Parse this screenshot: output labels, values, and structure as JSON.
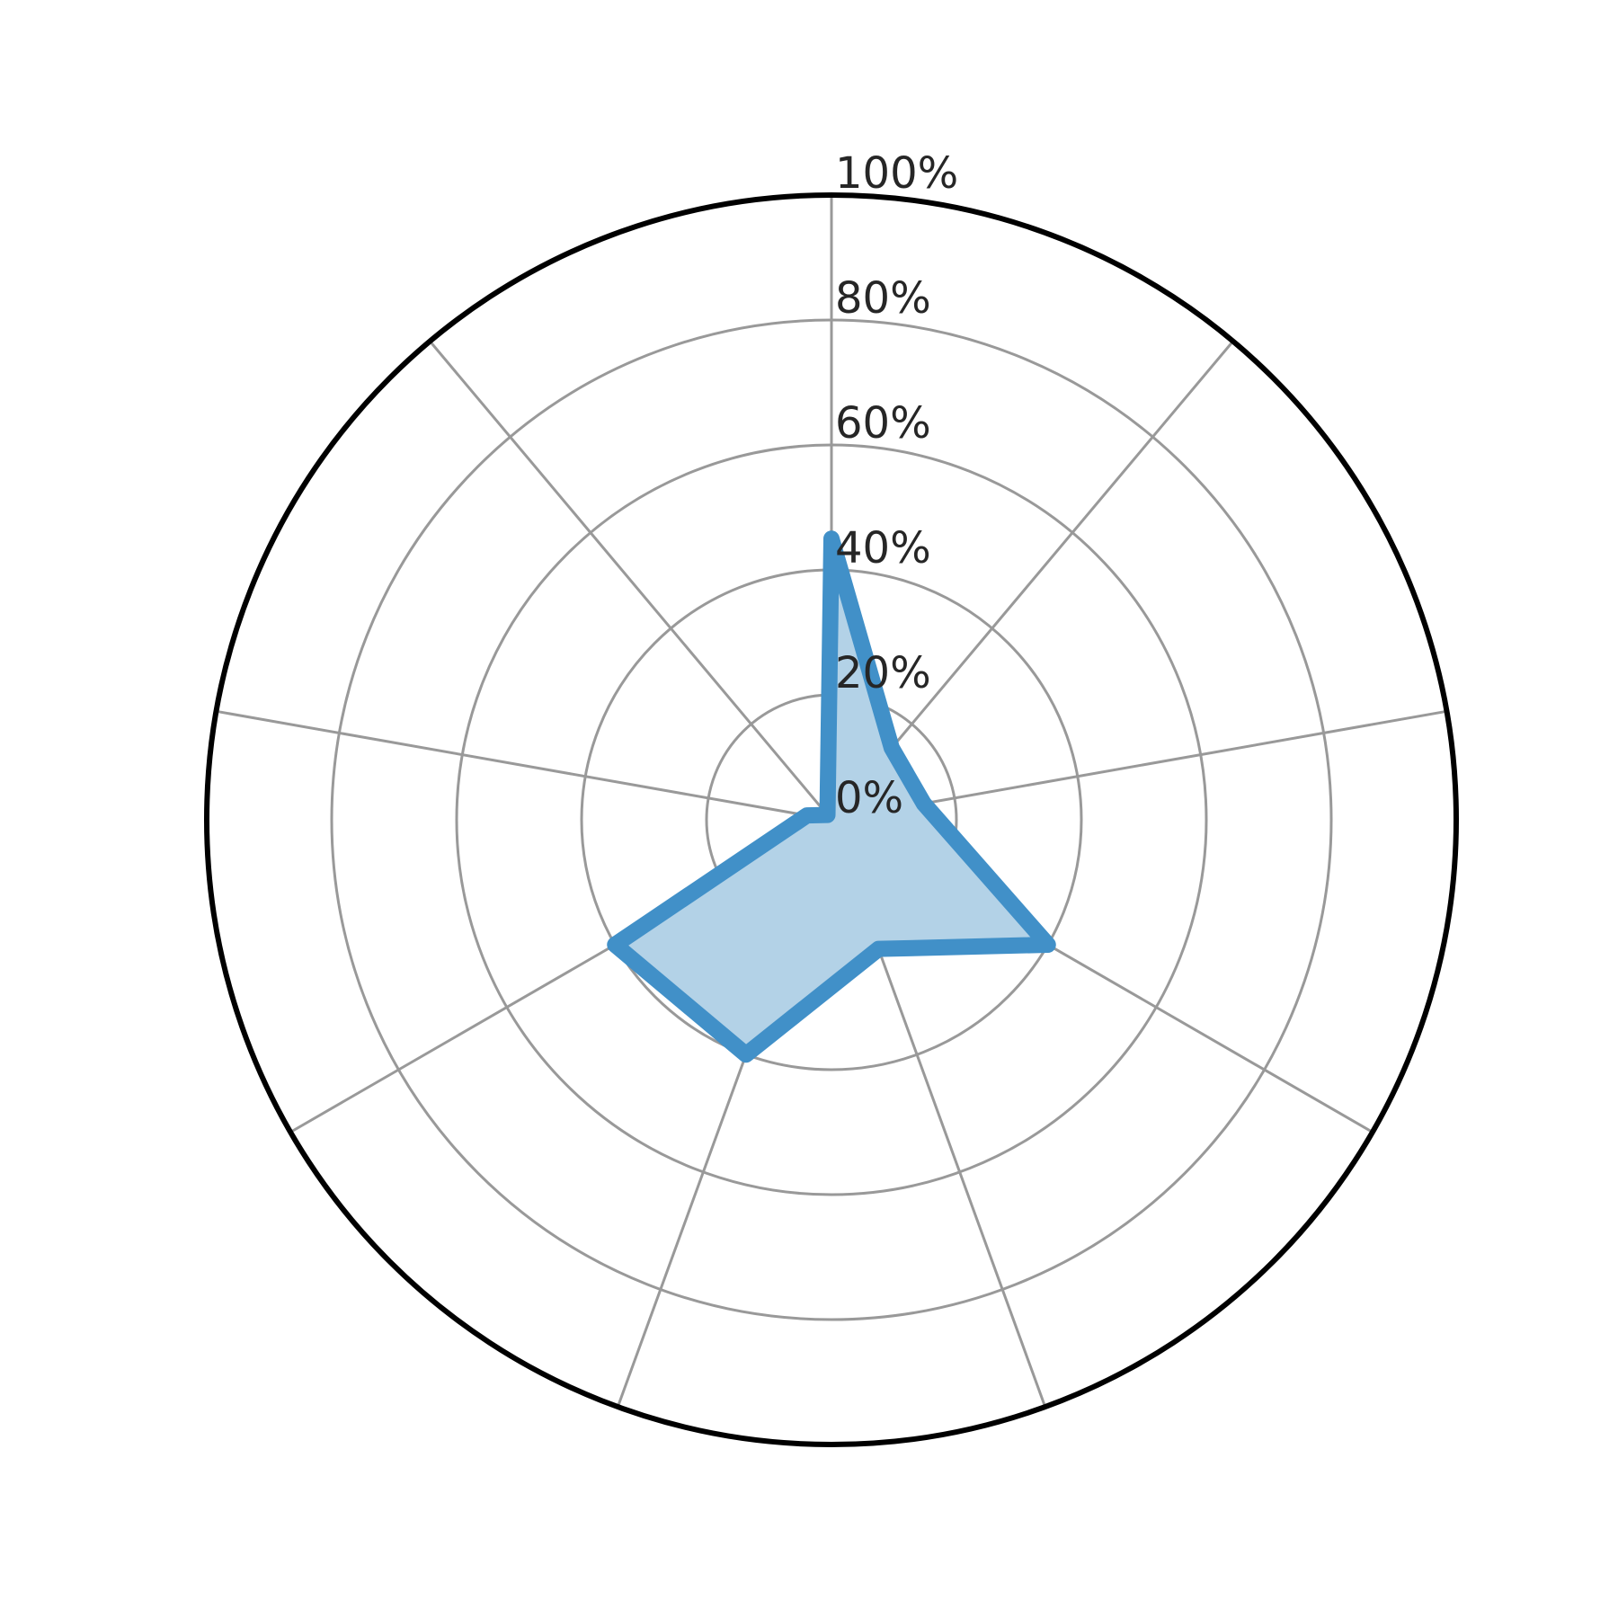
{
  "chart_data": {
    "type": "radar",
    "axes_count": 9,
    "r_range": [
      0,
      100
    ],
    "r_unit": "%",
    "r_ticks": [
      {
        "value": 0,
        "label": "0%"
      },
      {
        "value": 20,
        "label": "20%"
      },
      {
        "value": 40,
        "label": "40%"
      },
      {
        "value": 60,
        "label": "60%"
      },
      {
        "value": 80,
        "label": "80%"
      },
      {
        "value": 100,
        "label": "100%"
      }
    ],
    "grid": true,
    "series": [
      {
        "values": [
          45,
          15,
          15,
          40,
          22,
          40,
          40,
          4,
          1
        ]
      }
    ],
    "colors": {
      "line": "#4190c8",
      "fill": "#b3d2e7",
      "grid": "#999999",
      "frame": "#000000"
    }
  }
}
